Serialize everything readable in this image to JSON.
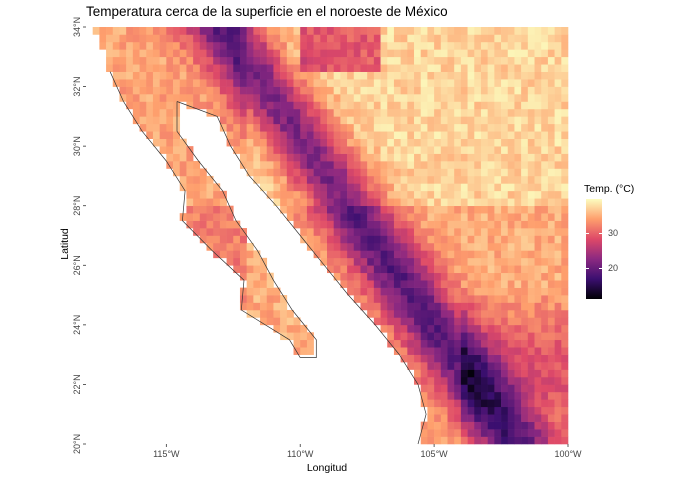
{
  "title": "Temperatura cerca de la superficie en el noroeste de México",
  "x_axis": {
    "label": "Longitud",
    "ticks": [
      {
        "value": -115,
        "label": "115°W"
      },
      {
        "value": -110,
        "label": "110°W"
      },
      {
        "value": -105,
        "label": "105°W"
      },
      {
        "value": -100,
        "label": "100°W"
      }
    ]
  },
  "y_axis": {
    "label": "Latitud",
    "ticks": [
      {
        "value": 20,
        "label": "20°N"
      },
      {
        "value": 22,
        "label": "22°N"
      },
      {
        "value": 24,
        "label": "24°N"
      },
      {
        "value": 26,
        "label": "26°N"
      },
      {
        "value": 28,
        "label": "28°N"
      },
      {
        "value": 30,
        "label": "30°N"
      },
      {
        "value": 32,
        "label": "32°N"
      },
      {
        "value": 34,
        "label": "34°N"
      }
    ]
  },
  "legend": {
    "title": "Temp. (°C)",
    "range": [
      11,
      40
    ],
    "ticks": [
      {
        "value": 20,
        "label": "20"
      },
      {
        "value": 30,
        "label": "30"
      }
    ],
    "colormap": "magma",
    "colors": [
      "#000004",
      "#3b0f70",
      "#8c2981",
      "#de4968",
      "#fe9f6d",
      "#fcfdbf"
    ]
  },
  "map": {
    "lon_range": [
      -118,
      -100
    ],
    "lat_range": [
      20,
      34
    ],
    "cell_deg": 0.25,
    "land_outline_color": "#333333"
  }
}
